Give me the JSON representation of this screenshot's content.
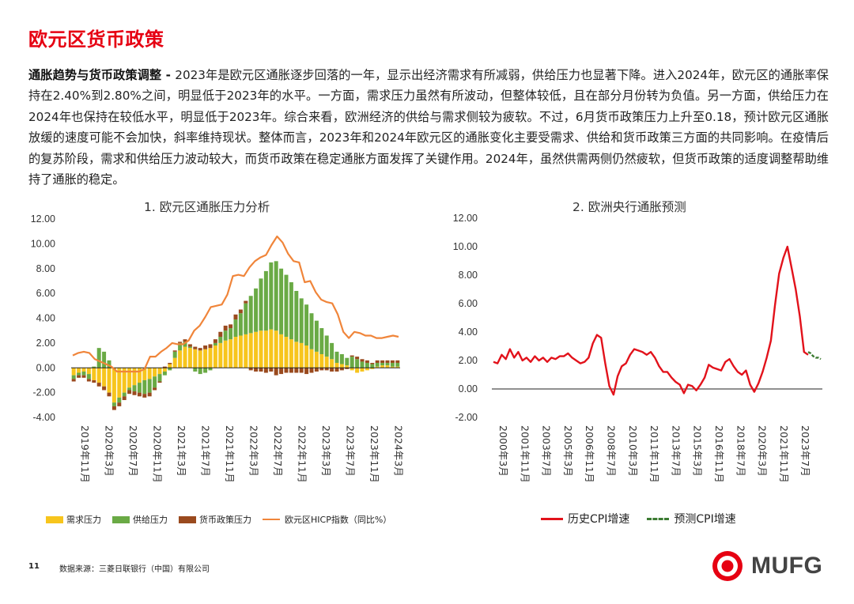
{
  "page_title": "欧元区货币政策",
  "paragraph": {
    "lead": "通胀趋势与货币政策调整 - ",
    "body": "2023年是欧元区通胀逐步回落的一年，显示出经济需求有所减弱，供给压力也显著下降。进入2024年，欧元区的通胀率保持在2.40%到2.80%之间，明显低于2023年的水平。一方面，需求压力虽然有所波动，但整体较低，且在部分月份转为负值。另一方面，供给压力在2024年也保持在较低水平，明显低于2023年。综合来看，欧洲经济的供给与需求侧较为疲软。不过，6月货币政策压力上升至0.18，预计欧元区通胀放缓的速度可能不会加快，斜率维持现状。整体而言，2023年和2024年欧元区的通胀变化主要受需求、供给和货币政策三方面的共同影响。在疫情后的复苏阶段，需求和供给压力波动较大，而货币政策在稳定通胀方面发挥了关键作用。2024年，虽然供需两侧仍然疲软，但货币政策的适度调整帮助维持了通胀的稳定。"
  },
  "chart_data": [
    {
      "type": "bar",
      "stacked": true,
      "title": "1. 欧元区通胀压力分析",
      "ylim": [
        -4,
        12
      ],
      "yticks": [
        "-4.00",
        "-2.00",
        "0.00",
        "2.00",
        "4.00",
        "6.00",
        "8.00",
        "10.00",
        "12.00"
      ],
      "ytick_values": [
        -4,
        -2,
        0,
        2,
        4,
        6,
        8,
        10,
        12
      ],
      "xticks": [
        "2019年11月",
        "2020年3月",
        "2020年7月",
        "2020年11月",
        "2021年3月",
        "2021年7月",
        "2021年11月",
        "2022年3月",
        "2022年7月",
        "2022年11月",
        "2023年3月",
        "2023年7月",
        "2023年11月",
        "2024年3月"
      ],
      "series": [
        {
          "name": "需求压力",
          "color": "#f7c51d",
          "values": [
            -0.6,
            -0.4,
            -0.3,
            -0.5,
            -1.0,
            -1.2,
            -1.5,
            -2.0,
            -2.8,
            -2.4,
            -2.0,
            -1.6,
            -1.4,
            -1.2,
            -1.0,
            -0.9,
            -0.7,
            -0.5,
            -0.3,
            0.3,
            0.8,
            1.4,
            1.7,
            1.6,
            1.5,
            1.4,
            1.5,
            1.6,
            1.8,
            2.0,
            2.2,
            2.3,
            2.5,
            2.6,
            2.7,
            2.8,
            2.9,
            3.0,
            3.0,
            3.1,
            3.0,
            2.7,
            2.5,
            2.3,
            2.1,
            2.0,
            1.8,
            1.5,
            1.3,
            1.1,
            0.9,
            0.7,
            0.4,
            0.3,
            0.2,
            -0.2,
            -0.4,
            -0.3,
            -0.2,
            -0.1,
            0.1,
            0.2,
            0.2,
            0.1,
            0.1
          ]
        },
        {
          "name": "供给压力",
          "color": "#6aaa45",
          "values": [
            -0.3,
            -0.2,
            -0.3,
            -0.4,
            0.1,
            1.6,
            1.3,
            0.6,
            -0.3,
            -0.4,
            -0.3,
            -0.2,
            -0.5,
            -0.8,
            -1.1,
            -1.1,
            -0.9,
            -0.6,
            -0.3,
            -0.2,
            0.5,
            0.6,
            0.4,
            0.1,
            -0.3,
            -0.5,
            -0.4,
            -0.2,
            0.2,
            0.5,
            0.8,
            0.9,
            1.4,
            1.8,
            2.5,
            3.0,
            3.5,
            4.2,
            4.8,
            5.4,
            5.6,
            5.3,
            5.0,
            4.6,
            4.1,
            3.6,
            3.3,
            2.9,
            2.5,
            2.1,
            1.7,
            1.3,
            0.9,
            0.8,
            0.6,
            0.9,
            0.7,
            0.5,
            0.4,
            0.3,
            0.3,
            0.2,
            0.2,
            0.3,
            0.3
          ]
        },
        {
          "name": "货币政策压力",
          "color": "#9a4a1e",
          "values": [
            -0.2,
            -0.2,
            -0.2,
            -0.2,
            -0.2,
            -0.3,
            -0.3,
            -0.3,
            -0.3,
            -0.3,
            -0.3,
            -0.3,
            -0.3,
            -0.3,
            -0.3,
            -0.3,
            -0.2,
            -0.1,
            0.1,
            0.1,
            0.1,
            0.1,
            0.2,
            0.2,
            0.2,
            0.2,
            0.3,
            0.3,
            0.3,
            0.4,
            0.4,
            0.3,
            0.4,
            0.3,
            0.2,
            -0.2,
            -0.3,
            -0.3,
            -0.4,
            -0.3,
            -0.6,
            -0.5,
            -0.4,
            -0.4,
            -0.4,
            -0.4,
            -0.5,
            -0.4,
            -0.3,
            -0.2,
            -0.2,
            -0.3,
            -0.3,
            -0.2,
            -0.1,
            0.1,
            0.2,
            0.2,
            0.2,
            0.1,
            0.2,
            0.2,
            0.2,
            0.2,
            0.2
          ]
        },
        {
          "name": "欧元区HICP指数（同比%）",
          "type": "line",
          "color": "#f0853a",
          "values": [
            1.0,
            1.2,
            1.3,
            1.2,
            0.7,
            0.5,
            0.3,
            0.1,
            -0.3,
            -0.3,
            -0.3,
            -0.3,
            -0.3,
            -0.1,
            0.9,
            0.9,
            1.3,
            1.6,
            2.0,
            1.9,
            1.9,
            2.2,
            3.0,
            3.4,
            4.1,
            4.9,
            5.0,
            5.1,
            5.9,
            7.4,
            7.5,
            7.4,
            8.1,
            8.6,
            8.9,
            9.1,
            9.9,
            10.6,
            10.1,
            9.2,
            8.6,
            8.5,
            6.9,
            7.0,
            6.1,
            5.5,
            5.3,
            5.2,
            4.3,
            2.9,
            2.4,
            2.9,
            2.8,
            2.6,
            2.6,
            2.4,
            2.4,
            2.5,
            2.6,
            2.5
          ]
        }
      ],
      "legend": [
        "需求压力",
        "供给压力",
        "货币政策压力",
        "欧元区HICP指数（同比%）"
      ]
    },
    {
      "type": "line",
      "title": "2. 欧洲央行通胀预测",
      "ylim": [
        -2,
        12
      ],
      "yticks": [
        "-2.00",
        "0.00",
        "2.00",
        "4.00",
        "6.00",
        "8.00",
        "10.00",
        "12.00"
      ],
      "ytick_values": [
        -2,
        0,
        2,
        4,
        6,
        8,
        10,
        12
      ],
      "xticks": [
        "2000年3月",
        "2001年11月",
        "2003年7月",
        "2005年3月",
        "2006年11月",
        "2008年7月",
        "2010年3月",
        "2011年11月",
        "2013年7月",
        "2015年3月",
        "2016年11月",
        "2018年7月",
        "2020年3月",
        "2021年11月",
        "2023年7月"
      ],
      "series": [
        {
          "name": "历史CPI增速",
          "color": "#e2121b",
          "values": [
            1.9,
            1.8,
            2.4,
            2.1,
            2.8,
            2.2,
            2.6,
            2.0,
            2.2,
            1.9,
            2.3,
            2.0,
            2.2,
            1.9,
            2.2,
            2.1,
            2.3,
            2.3,
            2.5,
            2.2,
            2.0,
            1.8,
            1.9,
            2.2,
            3.2,
            3.8,
            3.6,
            1.8,
            0.2,
            -0.4,
            0.9,
            1.6,
            1.8,
            2.4,
            2.8,
            2.7,
            2.6,
            2.4,
            2.6,
            2.2,
            1.6,
            1.2,
            1.2,
            0.8,
            0.5,
            0.3,
            -0.3,
            0.3,
            0.2,
            -0.1,
            0.3,
            0.8,
            1.7,
            1.5,
            1.4,
            1.3,
            1.9,
            2.1,
            1.6,
            1.2,
            1.0,
            1.3,
            0.3,
            -0.2,
            0.4,
            1.2,
            2.2,
            3.4,
            5.9,
            8.1,
            9.2,
            10.0,
            8.5,
            7.0,
            5.1,
            2.6,
            2.4
          ]
        },
        {
          "name": "预测CPI增速",
          "color": "#3c7b32",
          "dashed": true,
          "values": [
            2.6,
            2.5,
            2.3,
            2.2,
            2.2,
            2.1
          ]
        }
      ],
      "legend": [
        "历史CPI增速",
        "预测CPI增速"
      ]
    }
  ],
  "footer": {
    "page_number": "11",
    "source": "数据来源：三菱日联银行（中国）有限公司"
  },
  "logo": {
    "text": "MUFG",
    "color": "#e60012"
  }
}
